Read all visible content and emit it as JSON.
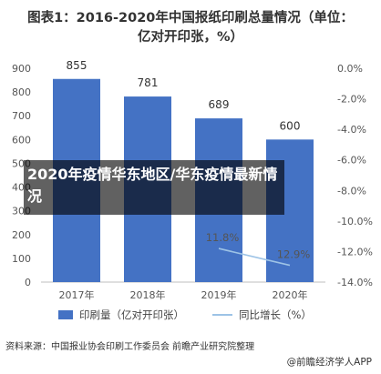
{
  "title": "图表1：2016-2020年中国报纸印刷总量情况（单位：亿对开印张，%）",
  "chart_data": {
    "type": "bar",
    "categories": [
      "2017年",
      "2018年",
      "2019年",
      "2020年"
    ],
    "series": [
      {
        "name": "印刷量（亿对开印张）",
        "type": "bar",
        "axis": "left",
        "values": [
          855,
          781,
          689,
          600
        ],
        "color": "#4472c4"
      },
      {
        "name": "同比增长（%）",
        "type": "line",
        "axis": "right",
        "values": [
          null,
          null,
          -11.8,
          -12.9
        ],
        "color": "#9dc3e6"
      }
    ],
    "y_left": {
      "ylim": [
        0,
        900
      ],
      "ticks": [
        0,
        100,
        200,
        300,
        400,
        500,
        600,
        700,
        800,
        900
      ]
    },
    "y_right": {
      "ylim": [
        -14,
        0
      ],
      "ticks": [
        "0.0%",
        "-2.0%",
        "-4.0%",
        "-6.0%",
        "-8.0%",
        "-10.0%",
        "-12.0%",
        "-14.0%"
      ]
    },
    "line_labels": [
      "11.8%",
      "12.9%"
    ],
    "grid": false,
    "legend_position": "bottom"
  },
  "overlay_text": "2020年疫情华东地区/华东疫情最新情况",
  "source": "资料来源：中国报业协会印刷工作委员会 前瞻产业研究院整理",
  "credit": "@前瞻经济学人APP"
}
